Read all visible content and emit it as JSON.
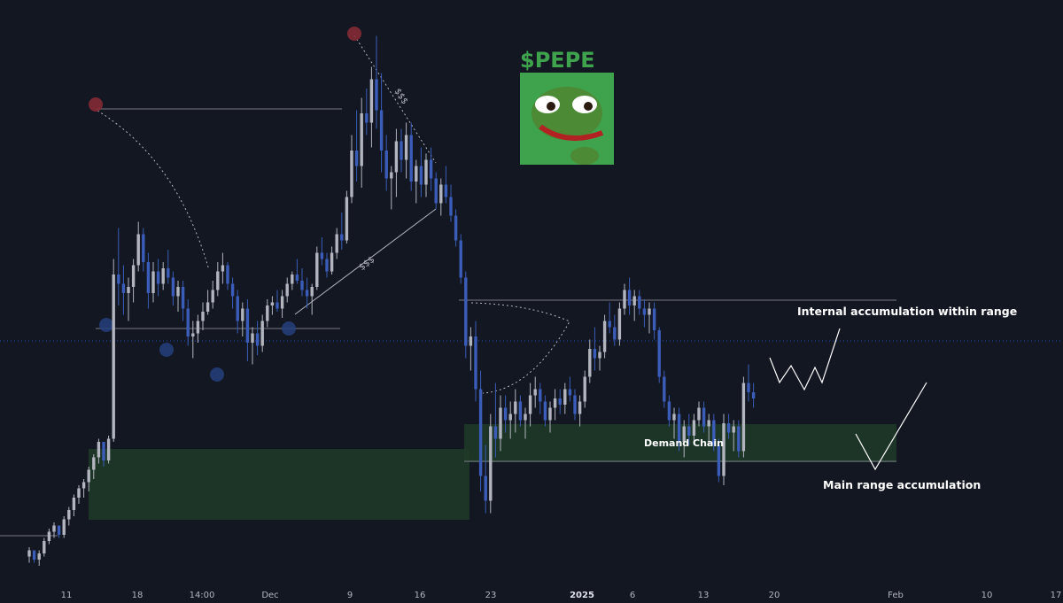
{
  "chart_data": {
    "type": "candlestick",
    "title": "$PEPE",
    "x_ticks": [
      "11",
      "18",
      "14:00",
      "Dec",
      "9",
      "16",
      "23",
      "2025",
      "6",
      "13",
      "20",
      "Feb",
      "10",
      "17"
    ],
    "candles": [
      [
        0.84,
        0.87,
        0.82,
        0.86
      ],
      [
        0.86,
        0.85,
        0.82,
        0.83
      ],
      [
        0.83,
        0.86,
        0.81,
        0.85
      ],
      [
        0.85,
        0.9,
        0.84,
        0.89
      ],
      [
        0.89,
        0.93,
        0.88,
        0.92
      ],
      [
        0.92,
        0.95,
        0.9,
        0.94
      ],
      [
        0.94,
        0.93,
        0.9,
        0.91
      ],
      [
        0.91,
        0.97,
        0.9,
        0.96
      ],
      [
        0.96,
        1.0,
        0.94,
        0.99
      ],
      [
        0.99,
        1.04,
        0.97,
        1.03
      ],
      [
        1.03,
        1.07,
        1.01,
        1.06
      ],
      [
        1.06,
        1.09,
        1.03,
        1.08
      ],
      [
        1.08,
        1.13,
        1.05,
        1.12
      ],
      [
        1.12,
        1.17,
        1.09,
        1.16
      ],
      [
        1.16,
        1.22,
        1.14,
        1.21
      ],
      [
        1.21,
        1.2,
        1.13,
        1.15
      ],
      [
        1.15,
        1.23,
        1.14,
        1.22
      ],
      [
        1.22,
        1.8,
        1.21,
        1.75
      ],
      [
        1.75,
        1.9,
        1.65,
        1.72
      ],
      [
        1.72,
        1.78,
        1.62,
        1.69
      ],
      [
        1.69,
        1.74,
        1.6,
        1.71
      ],
      [
        1.71,
        1.8,
        1.66,
        1.78
      ],
      [
        1.78,
        1.92,
        1.76,
        1.88
      ],
      [
        1.88,
        1.9,
        1.76,
        1.79
      ],
      [
        1.79,
        1.82,
        1.64,
        1.69
      ],
      [
        1.69,
        1.79,
        1.66,
        1.76
      ],
      [
        1.76,
        1.8,
        1.68,
        1.72
      ],
      [
        1.72,
        1.79,
        1.7,
        1.77
      ],
      [
        1.77,
        1.83,
        1.72,
        1.74
      ],
      [
        1.74,
        1.76,
        1.65,
        1.68
      ],
      [
        1.68,
        1.73,
        1.63,
        1.71
      ],
      [
        1.71,
        1.73,
        1.6,
        1.64
      ],
      [
        1.64,
        1.67,
        1.52,
        1.55
      ],
      [
        1.55,
        1.6,
        1.48,
        1.56
      ],
      [
        1.56,
        1.62,
        1.53,
        1.6
      ],
      [
        1.6,
        1.66,
        1.57,
        1.63
      ],
      [
        1.63,
        1.7,
        1.62,
        1.66
      ],
      [
        1.66,
        1.73,
        1.64,
        1.7
      ],
      [
        1.7,
        1.79,
        1.68,
        1.76
      ],
      [
        1.76,
        1.82,
        1.72,
        1.78
      ],
      [
        1.78,
        1.79,
        1.7,
        1.72
      ],
      [
        1.72,
        1.74,
        1.64,
        1.68
      ],
      [
        1.68,
        1.7,
        1.56,
        1.6
      ],
      [
        1.6,
        1.66,
        1.55,
        1.64
      ],
      [
        1.64,
        1.67,
        1.47,
        1.53
      ],
      [
        1.53,
        1.58,
        1.46,
        1.56
      ],
      [
        1.56,
        1.6,
        1.49,
        1.52
      ],
      [
        1.52,
        1.62,
        1.5,
        1.6
      ],
      [
        1.6,
        1.67,
        1.58,
        1.65
      ],
      [
        1.65,
        1.68,
        1.62,
        1.66
      ],
      [
        1.66,
        1.7,
        1.63,
        1.64
      ],
      [
        1.64,
        1.7,
        1.61,
        1.68
      ],
      [
        1.68,
        1.74,
        1.66,
        1.72
      ],
      [
        1.72,
        1.76,
        1.7,
        1.75
      ],
      [
        1.75,
        1.8,
        1.72,
        1.73
      ],
      [
        1.73,
        1.77,
        1.68,
        1.7
      ],
      [
        1.7,
        1.74,
        1.64,
        1.68
      ],
      [
        1.68,
        1.72,
        1.62,
        1.71
      ],
      [
        1.71,
        1.84,
        1.7,
        1.82
      ],
      [
        1.82,
        1.87,
        1.78,
        1.8
      ],
      [
        1.8,
        1.82,
        1.74,
        1.76
      ],
      [
        1.76,
        1.84,
        1.75,
        1.82
      ],
      [
        1.82,
        1.9,
        1.8,
        1.88
      ],
      [
        1.88,
        1.95,
        1.83,
        1.86
      ],
      [
        1.86,
        2.02,
        1.85,
        2.0
      ],
      [
        2.0,
        2.2,
        1.98,
        2.15
      ],
      [
        2.15,
        2.28,
        2.05,
        2.1
      ],
      [
        2.1,
        2.32,
        2.03,
        2.27
      ],
      [
        2.27,
        2.35,
        2.2,
        2.24
      ],
      [
        2.24,
        2.42,
        2.16,
        2.38
      ],
      [
        2.38,
        2.52,
        2.22,
        2.28
      ],
      [
        2.28,
        2.4,
        2.08,
        2.15
      ],
      [
        2.15,
        2.2,
        2.02,
        2.06
      ],
      [
        2.06,
        2.1,
        1.96,
        2.08
      ],
      [
        2.08,
        2.22,
        2.0,
        2.18
      ],
      [
        2.18,
        2.22,
        2.08,
        2.12
      ],
      [
        2.12,
        2.24,
        2.06,
        2.2
      ],
      [
        2.2,
        2.24,
        2.02,
        2.05
      ],
      [
        2.05,
        2.12,
        1.98,
        2.1
      ],
      [
        2.1,
        2.16,
        2.0,
        2.04
      ],
      [
        2.04,
        2.14,
        2.0,
        2.12
      ],
      [
        2.12,
        2.16,
        2.02,
        2.06
      ],
      [
        2.06,
        2.08,
        1.96,
        1.98
      ],
      [
        1.98,
        2.06,
        1.94,
        2.04
      ],
      [
        2.04,
        2.1,
        1.98,
        2.0
      ],
      [
        2.0,
        2.04,
        1.92,
        1.94
      ],
      [
        1.94,
        1.96,
        1.84,
        1.86
      ],
      [
        1.86,
        1.88,
        1.72,
        1.74
      ],
      [
        1.74,
        1.76,
        1.48,
        1.52
      ],
      [
        1.52,
        1.58,
        1.44,
        1.55
      ],
      [
        1.55,
        1.6,
        1.34,
        1.38
      ],
      [
        1.38,
        1.44,
        1.05,
        1.1
      ],
      [
        1.1,
        1.2,
        0.98,
        1.02
      ],
      [
        1.02,
        1.3,
        0.98,
        1.26
      ],
      [
        1.26,
        1.4,
        1.16,
        1.22
      ],
      [
        1.22,
        1.36,
        1.18,
        1.32
      ],
      [
        1.32,
        1.36,
        1.24,
        1.28
      ],
      [
        1.28,
        1.34,
        1.22,
        1.3
      ],
      [
        1.3,
        1.38,
        1.24,
        1.34
      ],
      [
        1.34,
        1.36,
        1.26,
        1.28
      ],
      [
        1.28,
        1.32,
        1.22,
        1.3
      ],
      [
        1.3,
        1.4,
        1.26,
        1.36
      ],
      [
        1.36,
        1.42,
        1.32,
        1.38
      ],
      [
        1.38,
        1.4,
        1.3,
        1.34
      ],
      [
        1.34,
        1.36,
        1.26,
        1.28
      ],
      [
        1.28,
        1.34,
        1.24,
        1.32
      ],
      [
        1.32,
        1.38,
        1.28,
        1.35
      ],
      [
        1.35,
        1.38,
        1.3,
        1.33
      ],
      [
        1.33,
        1.4,
        1.3,
        1.38
      ],
      [
        1.38,
        1.42,
        1.34,
        1.36
      ],
      [
        1.36,
        1.38,
        1.28,
        1.3
      ],
      [
        1.3,
        1.36,
        1.26,
        1.34
      ],
      [
        1.34,
        1.44,
        1.32,
        1.42
      ],
      [
        1.42,
        1.54,
        1.4,
        1.51
      ],
      [
        1.51,
        1.58,
        1.44,
        1.48
      ],
      [
        1.48,
        1.52,
        1.44,
        1.5
      ],
      [
        1.5,
        1.62,
        1.48,
        1.6
      ],
      [
        1.6,
        1.66,
        1.56,
        1.58
      ],
      [
        1.58,
        1.62,
        1.52,
        1.54
      ],
      [
        1.54,
        1.66,
        1.52,
        1.64
      ],
      [
        1.64,
        1.72,
        1.62,
        1.7
      ],
      [
        1.7,
        1.74,
        1.62,
        1.65
      ],
      [
        1.65,
        1.7,
        1.6,
        1.68
      ],
      [
        1.68,
        1.7,
        1.62,
        1.64
      ],
      [
        1.64,
        1.67,
        1.58,
        1.62
      ],
      [
        1.62,
        1.66,
        1.56,
        1.64
      ],
      [
        1.64,
        1.66,
        1.54,
        1.57
      ],
      [
        1.57,
        1.58,
        1.4,
        1.42
      ],
      [
        1.42,
        1.44,
        1.32,
        1.34
      ],
      [
        1.34,
        1.36,
        1.26,
        1.28
      ],
      [
        1.28,
        1.32,
        1.22,
        1.3
      ],
      [
        1.3,
        1.32,
        1.18,
        1.21
      ],
      [
        1.21,
        1.28,
        1.16,
        1.26
      ],
      [
        1.26,
        1.3,
        1.2,
        1.23
      ],
      [
        1.23,
        1.3,
        1.2,
        1.28
      ],
      [
        1.28,
        1.34,
        1.26,
        1.32
      ],
      [
        1.32,
        1.34,
        1.24,
        1.26
      ],
      [
        1.26,
        1.3,
        1.2,
        1.28
      ],
      [
        1.28,
        1.3,
        1.18,
        1.2
      ],
      [
        1.2,
        1.22,
        1.08,
        1.1
      ],
      [
        1.1,
        1.3,
        1.07,
        1.27
      ],
      [
        1.27,
        1.3,
        1.22,
        1.24
      ],
      [
        1.24,
        1.28,
        1.18,
        1.26
      ],
      [
        1.26,
        1.28,
        1.16,
        1.18
      ],
      [
        1.18,
        1.42,
        1.16,
        1.4
      ],
      [
        1.4,
        1.46,
        1.34,
        1.37
      ],
      [
        1.37,
        1.4,
        1.32,
        1.35
      ]
    ]
  },
  "title": "$PEPE",
  "annotations": {
    "internal": "Internal accumulation within range",
    "demand": "Demand Chain",
    "main": "Main range accumulation",
    "sss1": "$$$",
    "sss2": "$$$"
  },
  "colors": {
    "background": "#131722",
    "bull": "#b2b5be",
    "bear": "#3b5cb8",
    "zone": "#1f3b28",
    "level": "#787b86",
    "pepe_bg": "#3fa34d"
  }
}
